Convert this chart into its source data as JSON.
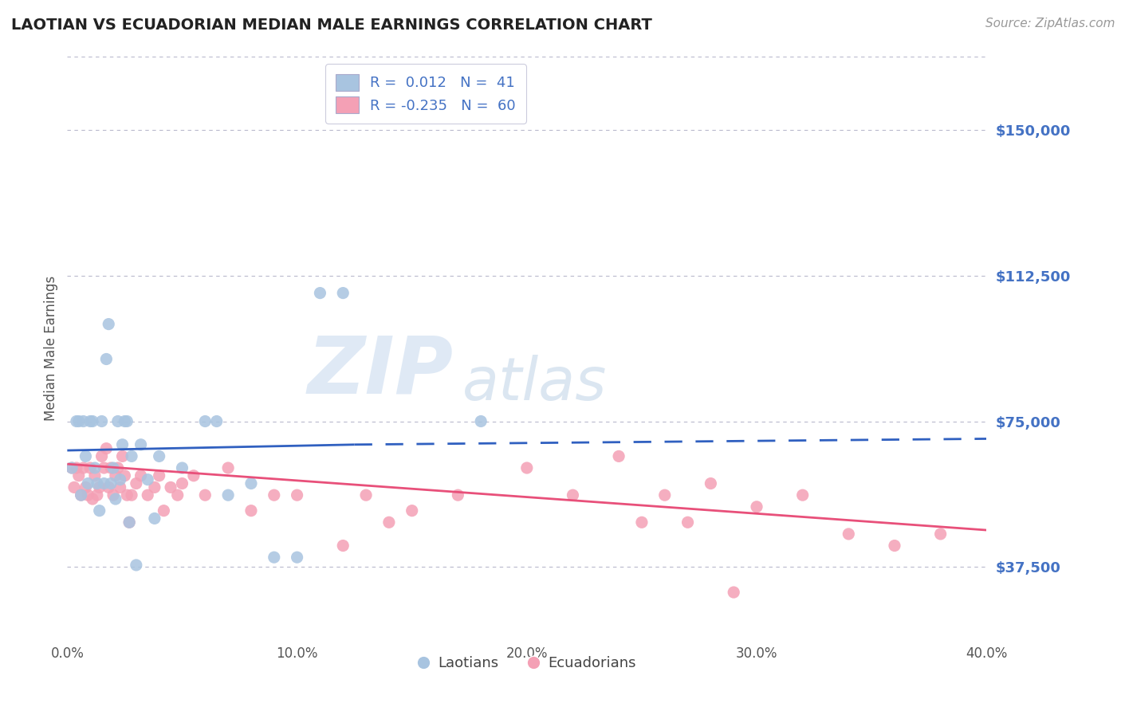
{
  "title": "LAOTIAN VS ECUADORIAN MEDIAN MALE EARNINGS CORRELATION CHART",
  "source_text": "Source: ZipAtlas.com",
  "ylabel": "Median Male Earnings",
  "xlim": [
    0.0,
    0.4
  ],
  "ylim": [
    18750,
    168750
  ],
  "yticks": [
    37500,
    75000,
    112500,
    150000
  ],
  "ytick_labels": [
    "$37,500",
    "$75,000",
    "$112,500",
    "$150,000"
  ],
  "xticks": [
    0.0,
    0.1,
    0.2,
    0.3,
    0.4
  ],
  "xtick_labels": [
    "0.0%",
    "10.0%",
    "20.0%",
    "30.0%",
    "40.0%"
  ],
  "laotian_color": "#a8c4e0",
  "ecuadorian_color": "#f4a0b5",
  "laotian_line_color": "#3060c0",
  "ecuadorian_line_color": "#e8507a",
  "R_laotian": "0.012",
  "N_laotian": "41",
  "R_ecuadorian": "-0.235",
  "N_ecuadorian": "60",
  "grid_color": "#b8b8cc",
  "tick_color": "#4472c4",
  "background_color": "#ffffff",
  "watermark_zip": "ZIP",
  "watermark_atlas": "atlas",
  "laotian_line": [
    [
      0.0,
      67500
    ],
    [
      0.125,
      69000
    ]
  ],
  "laotian_line_dash": [
    [
      0.125,
      69000
    ],
    [
      0.4,
      70500
    ]
  ],
  "ecuadorian_line": [
    [
      0.0,
      64000
    ],
    [
      0.4,
      47000
    ]
  ],
  "laotian_scatter": [
    [
      0.002,
      63000
    ],
    [
      0.004,
      75000
    ],
    [
      0.005,
      75000
    ],
    [
      0.006,
      56000
    ],
    [
      0.007,
      75000
    ],
    [
      0.008,
      66000
    ],
    [
      0.009,
      59000
    ],
    [
      0.01,
      75000
    ],
    [
      0.011,
      75000
    ],
    [
      0.012,
      63000
    ],
    [
      0.013,
      59000
    ],
    [
      0.014,
      52000
    ],
    [
      0.015,
      75000
    ],
    [
      0.016,
      59000
    ],
    [
      0.017,
      91000
    ],
    [
      0.018,
      100000
    ],
    [
      0.019,
      59000
    ],
    [
      0.02,
      63000
    ],
    [
      0.021,
      55000
    ],
    [
      0.022,
      75000
    ],
    [
      0.023,
      60000
    ],
    [
      0.024,
      69000
    ],
    [
      0.025,
      75000
    ],
    [
      0.026,
      75000
    ],
    [
      0.027,
      49000
    ],
    [
      0.028,
      66000
    ],
    [
      0.03,
      38000
    ],
    [
      0.032,
      69000
    ],
    [
      0.035,
      60000
    ],
    [
      0.038,
      50000
    ],
    [
      0.04,
      66000
    ],
    [
      0.05,
      63000
    ],
    [
      0.06,
      75000
    ],
    [
      0.065,
      75000
    ],
    [
      0.07,
      56000
    ],
    [
      0.08,
      59000
    ],
    [
      0.09,
      40000
    ],
    [
      0.1,
      40000
    ],
    [
      0.11,
      108000
    ],
    [
      0.12,
      108000
    ],
    [
      0.18,
      75000
    ]
  ],
  "ecuadorian_scatter": [
    [
      0.002,
      63000
    ],
    [
      0.003,
      58000
    ],
    [
      0.004,
      63000
    ],
    [
      0.005,
      61000
    ],
    [
      0.006,
      56000
    ],
    [
      0.007,
      63000
    ],
    [
      0.008,
      58000
    ],
    [
      0.009,
      56000
    ],
    [
      0.01,
      63000
    ],
    [
      0.011,
      55000
    ],
    [
      0.012,
      61000
    ],
    [
      0.013,
      56000
    ],
    [
      0.014,
      58000
    ],
    [
      0.015,
      66000
    ],
    [
      0.016,
      63000
    ],
    [
      0.017,
      68000
    ],
    [
      0.018,
      58000
    ],
    [
      0.019,
      63000
    ],
    [
      0.02,
      56000
    ],
    [
      0.021,
      61000
    ],
    [
      0.022,
      63000
    ],
    [
      0.023,
      58000
    ],
    [
      0.024,
      66000
    ],
    [
      0.025,
      61000
    ],
    [
      0.026,
      56000
    ],
    [
      0.027,
      49000
    ],
    [
      0.028,
      56000
    ],
    [
      0.03,
      59000
    ],
    [
      0.032,
      61000
    ],
    [
      0.035,
      56000
    ],
    [
      0.038,
      58000
    ],
    [
      0.04,
      61000
    ],
    [
      0.042,
      52000
    ],
    [
      0.045,
      58000
    ],
    [
      0.048,
      56000
    ],
    [
      0.05,
      59000
    ],
    [
      0.055,
      61000
    ],
    [
      0.06,
      56000
    ],
    [
      0.07,
      63000
    ],
    [
      0.08,
      52000
    ],
    [
      0.09,
      56000
    ],
    [
      0.1,
      56000
    ],
    [
      0.12,
      43000
    ],
    [
      0.13,
      56000
    ],
    [
      0.14,
      49000
    ],
    [
      0.15,
      52000
    ],
    [
      0.17,
      56000
    ],
    [
      0.2,
      63000
    ],
    [
      0.22,
      56000
    ],
    [
      0.24,
      66000
    ],
    [
      0.25,
      49000
    ],
    [
      0.26,
      56000
    ],
    [
      0.27,
      49000
    ],
    [
      0.28,
      59000
    ],
    [
      0.29,
      31000
    ],
    [
      0.3,
      53000
    ],
    [
      0.32,
      56000
    ],
    [
      0.34,
      46000
    ],
    [
      0.36,
      43000
    ],
    [
      0.38,
      46000
    ]
  ]
}
